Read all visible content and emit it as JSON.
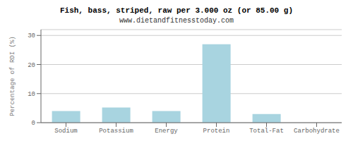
{
  "chart_data": {
    "type": "bar",
    "title": "Fish, bass, striped, raw per 3.000 oz (or 85.00 g)",
    "subtitle": "www.dietandfitnesstoday.com",
    "categories": [
      "Sodium",
      "Potassium",
      "Energy",
      "Protein",
      "Total-Fat",
      "Carbohydrate"
    ],
    "values": [
      4.0,
      5.2,
      4.0,
      27.0,
      3.0,
      0.0
    ],
    "color": "#a8d4e0",
    "ylabel": "Percentage of RDI (%)",
    "ylim": [
      0,
      32
    ],
    "yticks": [
      0,
      10,
      20,
      30
    ],
    "grid": true
  }
}
